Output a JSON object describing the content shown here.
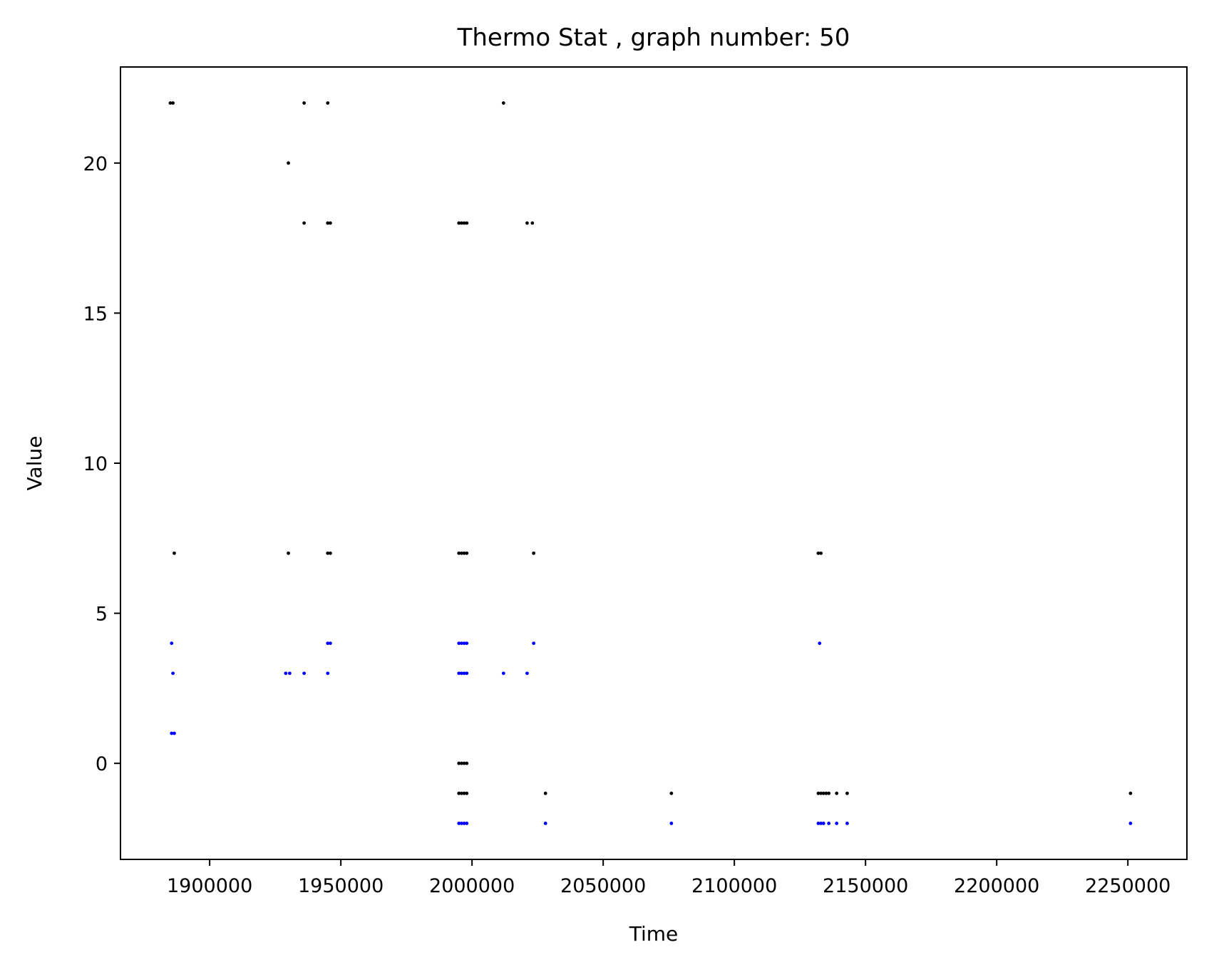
{
  "chart_data": {
    "type": "scatter",
    "title": "Thermo Stat , graph number: 50",
    "xlabel": "Time",
    "ylabel": "Value",
    "xlim": [
      1866000,
      2272500
    ],
    "ylim": [
      -3.2,
      23.2
    ],
    "xticks": [
      1900000,
      1950000,
      2000000,
      2050000,
      2100000,
      2150000,
      2200000,
      2250000
    ],
    "xtick_labels": [
      "1900000",
      "1950000",
      "2000000",
      "2050000",
      "2100000",
      "2150000",
      "2200000",
      "2250000"
    ],
    "yticks": [
      0,
      5,
      10,
      15,
      20
    ],
    "ytick_labels": [
      "0",
      "5",
      "10",
      "15",
      "20"
    ],
    "grid": false,
    "legend": "none",
    "series": [
      {
        "name": "black",
        "color": "#000000",
        "points": [
          [
            1885000,
            22
          ],
          [
            1886000,
            22
          ],
          [
            1886500,
            7
          ],
          [
            1930000,
            20
          ],
          [
            1930000,
            7
          ],
          [
            1936000,
            22
          ],
          [
            1936000,
            18
          ],
          [
            1945000,
            22
          ],
          [
            1945000,
            18
          ],
          [
            1946000,
            18
          ],
          [
            1945000,
            7
          ],
          [
            1946000,
            7
          ],
          [
            1995000,
            18
          ],
          [
            1996000,
            18
          ],
          [
            1997000,
            18
          ],
          [
            1998000,
            18
          ],
          [
            1995000,
            7
          ],
          [
            1996000,
            7
          ],
          [
            1997000,
            7
          ],
          [
            1998000,
            7
          ],
          [
            1995000,
            0
          ],
          [
            1996000,
            0
          ],
          [
            1997000,
            0
          ],
          [
            1998000,
            0
          ],
          [
            1995000,
            -1
          ],
          [
            1996000,
            -1
          ],
          [
            1997000,
            -1
          ],
          [
            1998000,
            -1
          ],
          [
            2012000,
            22
          ],
          [
            2021000,
            18
          ],
          [
            2023000,
            18
          ],
          [
            2023500,
            7
          ],
          [
            2028000,
            -1
          ],
          [
            2076000,
            -1
          ],
          [
            2132000,
            7
          ],
          [
            2133000,
            7
          ],
          [
            2132000,
            -1
          ],
          [
            2133000,
            -1
          ],
          [
            2134000,
            -1
          ],
          [
            2135000,
            -1
          ],
          [
            2136000,
            -1
          ],
          [
            2139000,
            -1
          ],
          [
            2143000,
            -1
          ],
          [
            2251000,
            -1
          ]
        ]
      },
      {
        "name": "blue",
        "color": "#0000ff",
        "points": [
          [
            1885500,
            4
          ],
          [
            1886000,
            3
          ],
          [
            1885500,
            1
          ],
          [
            1886500,
            1
          ],
          [
            1929000,
            3
          ],
          [
            1930500,
            3
          ],
          [
            1936000,
            3
          ],
          [
            1945000,
            3
          ],
          [
            1945000,
            4
          ],
          [
            1946000,
            4
          ],
          [
            1995000,
            4
          ],
          [
            1996000,
            4
          ],
          [
            1997000,
            4
          ],
          [
            1998000,
            4
          ],
          [
            1995000,
            3
          ],
          [
            1996000,
            3
          ],
          [
            1997000,
            3
          ],
          [
            1998000,
            3
          ],
          [
            1995000,
            -2
          ],
          [
            1996000,
            -2
          ],
          [
            1997000,
            -2
          ],
          [
            1998000,
            -2
          ],
          [
            2012000,
            3
          ],
          [
            2021000,
            3
          ],
          [
            2023500,
            4
          ],
          [
            2028000,
            -2
          ],
          [
            2076000,
            -2
          ],
          [
            2132500,
            4
          ],
          [
            2132000,
            -2
          ],
          [
            2133000,
            -2
          ],
          [
            2134000,
            -2
          ],
          [
            2136000,
            -2
          ],
          [
            2139000,
            -2
          ],
          [
            2143000,
            -2
          ],
          [
            2251000,
            -2
          ]
        ]
      }
    ]
  }
}
